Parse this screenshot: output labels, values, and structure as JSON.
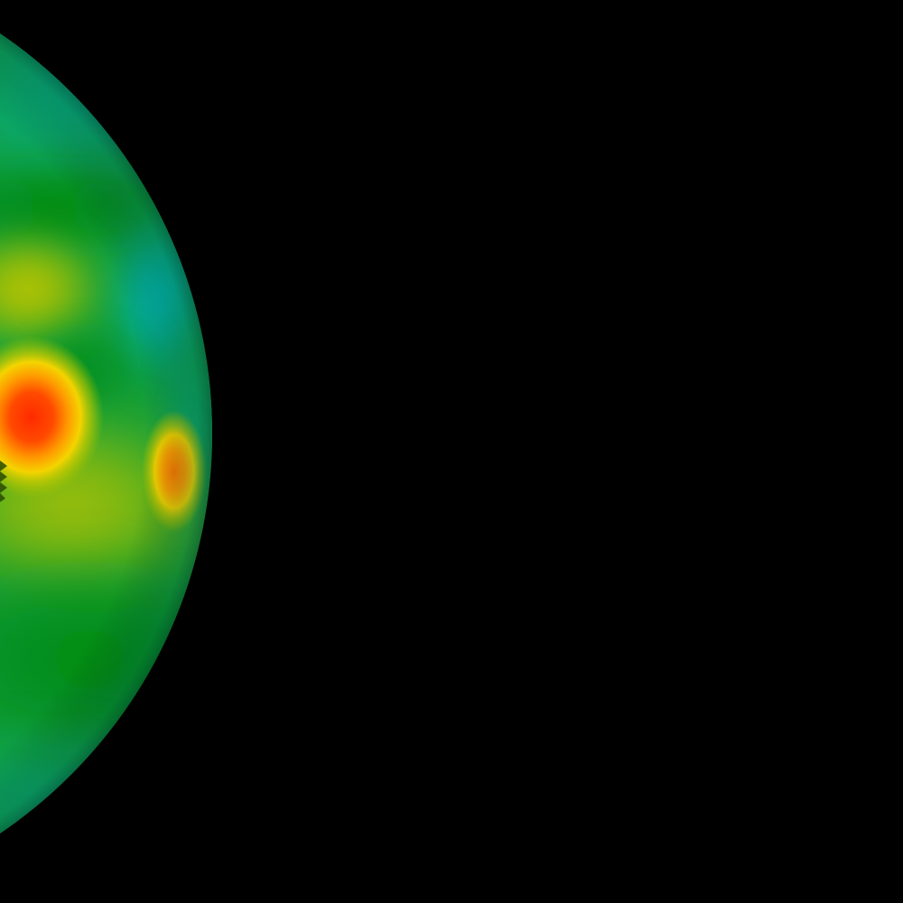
{
  "image": {
    "background_color": "#000000",
    "subject": "heat-map-sphere",
    "palette": {
      "cool": "#00b8c0",
      "teal": "#10a89a",
      "green": "#008a10",
      "yellow_green": "#9cc000",
      "yellow": "#f2d200",
      "orange": "#ff8c00",
      "red": "#ff3000"
    }
  }
}
